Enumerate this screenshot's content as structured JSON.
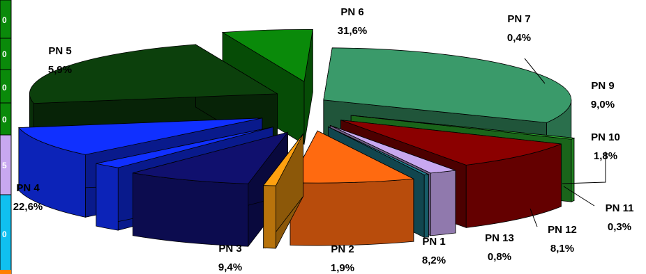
{
  "chart_data": {
    "type": "pie",
    "title": "",
    "style": "3d-exploded",
    "legend": "none",
    "slices": [
      {
        "label": "PN 6",
        "percent_label": "31,6%",
        "value": 31.6,
        "color": "#3a9a6a"
      },
      {
        "label": "PN 7",
        "percent_label": "0,4%",
        "value": 0.4,
        "color": "#2fb82f"
      },
      {
        "label": "PN 9",
        "percent_label": "9,0%",
        "value": 9.0,
        "color": "#8b0000"
      },
      {
        "label": "PN 10",
        "percent_label": "1,8%",
        "value": 1.8,
        "color": "#c8a8f0"
      },
      {
        "label": "PN 11",
        "percent_label": "0,3%",
        "value": 0.3,
        "color": "#1f7f8f"
      },
      {
        "label": "PN 12",
        "percent_label": "8,1%",
        "value": 8.1,
        "color": "#ff6a10"
      },
      {
        "label": "PN 13",
        "percent_label": "0,8%",
        "value": 0.8,
        "color": "#ffa010"
      },
      {
        "label": "PN 1",
        "percent_label": "8,2%",
        "value": 8.2,
        "color": "#10106e"
      },
      {
        "label": "PN 2",
        "percent_label": "1,9%",
        "value": 1.9,
        "color": "#1030ff"
      },
      {
        "label": "PN 3",
        "percent_label": "9,4%",
        "value": 9.4,
        "color": "#1030ff"
      },
      {
        "label": "PN 4",
        "percent_label": "22,6%",
        "value": 22.6,
        "color": "#0c400c"
      },
      {
        "label": "PN 5",
        "percent_label": "5,9%",
        "value": 5.9,
        "color": "#0a8a0a"
      }
    ]
  },
  "legend_strip": {
    "cells": [
      {
        "text": "0",
        "color": "#0a8a0a"
      },
      {
        "text": "0",
        "color": "#0a8a0a"
      },
      {
        "text": "0",
        "color": "#0a8a0a"
      },
      {
        "text": "0",
        "color": "#0a8a0a"
      },
      {
        "text": "5",
        "color": "#c8a8f0"
      },
      {
        "text": "0",
        "color": "#10c0f0"
      }
    ]
  }
}
